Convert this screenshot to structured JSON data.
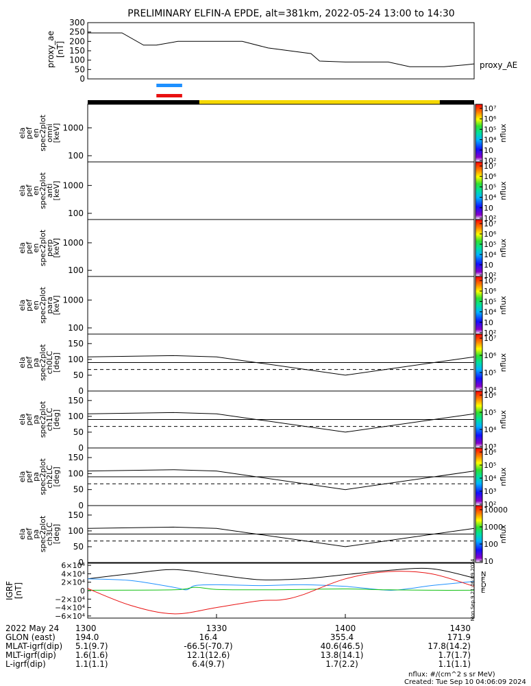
{
  "title": "PRELIMINARY ELFIN-A EPDE, alt=381km, 2022-05-24 13:00 to 14:30",
  "stamp": "Mon Sep 9 21:06:09 2024",
  "colors": {
    "black": "#000000",
    "yellow": "#f5d800",
    "blue": "#1e90ff",
    "red": "#e81010",
    "green": "#10c010"
  },
  "chart_data": [
    {
      "type": "line",
      "name": "proxy_ae",
      "ylabel": [
        "proxy_ae",
        "[nT]"
      ],
      "ylim": [
        0,
        300
      ],
      "yticks": [
        0,
        50,
        100,
        150,
        200,
        250,
        300
      ],
      "legend": "proxy_AE",
      "series": [
        {
          "name": "proxy_AE",
          "x": [
            0,
            8,
            13,
            16,
            21,
            26,
            33,
            36,
            42,
            52,
            54,
            60,
            64,
            70,
            75,
            83,
            88,
            90
          ],
          "values": [
            245,
            245,
            180,
            180,
            200,
            200,
            200,
            200,
            165,
            135,
            95,
            90,
            90,
            90,
            65,
            65,
            75,
            80
          ]
        }
      ]
    },
    {
      "type": "bar",
      "name": "orbit-indicators",
      "segments": [
        {
          "color": "#000000",
          "x": [
            0,
            26
          ]
        },
        {
          "color": "#f5d800",
          "x": [
            26,
            82
          ]
        },
        {
          "color": "#000000",
          "x": [
            82,
            90
          ]
        }
      ],
      "markers": [
        {
          "color": "#1e90ff",
          "x": [
            16,
            22
          ]
        },
        {
          "color": "#e81010",
          "x": [
            16,
            22
          ]
        }
      ]
    },
    {
      "type": "heatmap",
      "name": "spec-omni",
      "ylabel": [
        "ela",
        "pef",
        "en",
        "spec2plot",
        "omni",
        "[keV]"
      ],
      "yscale": "log",
      "ylim": [
        60,
        7000
      ],
      "yticks": [
        100,
        1000
      ],
      "tick_labels": [
        "100",
        "1000"
      ],
      "colorbar": {
        "label": "nflux",
        "ticks": [
          "10⁷",
          "10⁶",
          "10⁵",
          "10⁴",
          "10⁳",
          "10²"
        ]
      }
    },
    {
      "type": "heatmap",
      "name": "spec-anti",
      "ylabel": [
        "ela",
        "pef",
        "en",
        "spec2plot",
        "anti",
        "[keV]"
      ],
      "yscale": "log",
      "ylim": [
        60,
        7000
      ],
      "yticks": [
        100,
        1000
      ],
      "tick_labels": [
        "100",
        "1000"
      ],
      "colorbar": {
        "label": "nflux",
        "ticks": [
          "10⁷",
          "10⁶",
          "10⁵",
          "10⁴",
          "10⁳",
          "10²"
        ]
      }
    },
    {
      "type": "heatmap",
      "name": "spec-perp",
      "ylabel": [
        "ela",
        "pef",
        "en",
        "spec2plot",
        "perp",
        "[keV]"
      ],
      "yscale": "log",
      "ylim": [
        60,
        7000
      ],
      "yticks": [
        100,
        1000
      ],
      "tick_labels": [
        "100",
        "1000"
      ],
      "colorbar": {
        "label": "nflux",
        "ticks": [
          "10⁷",
          "10⁶",
          "10⁵",
          "10⁴",
          "10⁳",
          "10²"
        ]
      }
    },
    {
      "type": "heatmap",
      "name": "spec-para",
      "ylabel": [
        "ela",
        "pef",
        "en",
        "spec2plot",
        "para",
        "[keV]"
      ],
      "yscale": "log",
      "ylim": [
        60,
        7000
      ],
      "yticks": [
        100,
        1000
      ],
      "tick_labels": [
        "100",
        "1000"
      ],
      "colorbar": {
        "label": "nflux",
        "ticks": [
          "10⁷",
          "10⁶",
          "10⁵",
          "10⁴",
          "10⁳",
          "10²"
        ]
      }
    },
    {
      "type": "heatmap",
      "name": "pa-ch0LC",
      "ylabel": [
        "ela",
        "pef",
        "pa",
        "spec2plot",
        "ch0LC",
        "[deg]"
      ],
      "ylim": [
        0,
        180
      ],
      "yticks": [
        0,
        50,
        100,
        150
      ],
      "tick_labels": [
        "0",
        "50",
        "100",
        "150"
      ],
      "colorbar": {
        "label": "nflux",
        "ticks": [
          "10⁷",
          "10⁶",
          "10⁵",
          "10⁴"
        ]
      }
    },
    {
      "type": "heatmap",
      "name": "pa-ch1LC",
      "ylabel": [
        "ela",
        "pef",
        "pa",
        "spec2plot",
        "ch1LC",
        "[deg]"
      ],
      "ylim": [
        0,
        180
      ],
      "yticks": [
        0,
        50,
        100,
        150
      ],
      "tick_labels": [
        "0",
        "50",
        "100",
        "150"
      ],
      "colorbar": {
        "label": "nflux",
        "ticks": [
          "10⁶",
          "10⁵",
          "10⁴",
          "10³"
        ]
      }
    },
    {
      "type": "heatmap",
      "name": "pa-ch2LC",
      "ylabel": [
        "ela",
        "pef",
        "pa",
        "spec2plot",
        "ch2LC",
        "[deg]"
      ],
      "ylim": [
        0,
        180
      ],
      "yticks": [
        0,
        50,
        100,
        150
      ],
      "tick_labels": [
        "0",
        "50",
        "100",
        "150"
      ],
      "colorbar": {
        "label": "nflux",
        "ticks": [
          "10⁶",
          "10⁵",
          "10⁴",
          "10³",
          "10²"
        ]
      }
    },
    {
      "type": "heatmap",
      "name": "pa-ch3LC",
      "ylabel": [
        "ela",
        "pef",
        "pa",
        "spec2plot",
        "ch3LC",
        "[deg]"
      ],
      "ylim": [
        0,
        180
      ],
      "yticks": [
        0,
        50,
        100,
        150
      ],
      "tick_labels": [
        "0",
        "50",
        "100",
        "150"
      ],
      "colorbar": {
        "label": "nflux",
        "ticks": [
          "10000",
          "1000",
          "100",
          "10"
        ]
      }
    },
    {
      "type": "line",
      "name": "igrf",
      "ylabel": [
        "IGRF",
        "[nT]"
      ],
      "ylim": [
        -65000,
        65000
      ],
      "yticks": [
        60000,
        40000,
        20000,
        0,
        -20000,
        -40000,
        -60000
      ],
      "tick_labels": [
        "6×10⁴",
        "4×10⁴",
        "2×10⁴",
        "0",
        "−2×10⁴",
        "−4×10⁴",
        "−6×10⁴"
      ],
      "legend": [
        "N",
        "E",
        "D",
        "E"
      ],
      "series": [
        {
          "name": "black",
          "color": "#000000",
          "x": [
            0,
            10,
            20,
            30,
            40,
            50,
            60,
            70,
            80,
            90
          ],
          "values": [
            28000,
            40000,
            50000,
            38000,
            26000,
            28000,
            38000,
            48000,
            52000,
            30000
          ]
        },
        {
          "name": "blue",
          "color": "#1e90ff",
          "x": [
            0,
            10,
            20,
            23,
            25,
            30,
            40,
            50,
            60,
            70,
            75,
            80,
            90
          ],
          "values": [
            28000,
            24000,
            8000,
            2000,
            12000,
            14000,
            12000,
            14000,
            10000,
            1000,
            5000,
            12000,
            22000
          ]
        },
        {
          "name": "green",
          "color": "#10c010",
          "x": [
            0,
            20,
            25,
            30,
            40,
            50,
            60,
            70,
            80,
            90
          ],
          "values": [
            1000,
            2000,
            8000,
            3000,
            2000,
            3000,
            4000,
            2000,
            1000,
            1000
          ]
        },
        {
          "name": "red",
          "color": "#e81010",
          "x": [
            0,
            10,
            20,
            30,
            40,
            45,
            50,
            60,
            70,
            80,
            90
          ],
          "values": [
            5000,
            -35000,
            -55000,
            -40000,
            -24000,
            -22000,
            -10000,
            28000,
            45000,
            40000,
            10000
          ]
        }
      ]
    }
  ],
  "time_axis": {
    "ticks": [
      {
        "t": 0,
        "label": "1300"
      },
      {
        "t": 30,
        "label": "1330"
      },
      {
        "t": 60,
        "label": "1400"
      },
      {
        "t": 90,
        "label": "1430"
      }
    ]
  },
  "info_rows": [
    [
      "2022 May 24",
      "1300",
      "",
      "",
      "1430"
    ],
    [
      "GLON (east)",
      "194.0",
      "16.4",
      "355.4",
      "171.9"
    ],
    [
      "MLAT-igrf(dip)",
      "5.1(9.7)",
      "-66.5(-70.7)",
      "40.6(46.5)",
      "17.8(14.2)"
    ],
    [
      "MLT-igrf(dip)",
      "1.6(1.6)",
      "12.1(12.6)",
      "13.8(14.1)",
      "1.7(1.7)"
    ],
    [
      "L-igrf(dip)",
      "1.1(1.1)",
      "6.4(9.7)",
      "1.7(2.2)",
      "1.1(1.1)"
    ]
  ],
  "footer": {
    "units": "nflux: #/(cm^2 s sr MeV)",
    "created": "Created: Tue Sep 10 04:06:09 2024"
  }
}
